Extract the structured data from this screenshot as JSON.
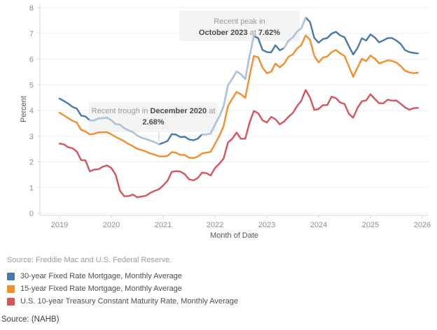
{
  "chart_data": {
    "type": "line",
    "xlabel": "Month of Date",
    "ylabel": "Percent",
    "x_start": "2019-01",
    "x_interval": "monthly",
    "xticks": [
      "2019",
      "2020",
      "2021",
      "2022",
      "2023",
      "2024",
      "2025",
      "2026"
    ],
    "yticks": [
      "0",
      "1",
      "2",
      "3",
      "4",
      "5",
      "6",
      "7",
      "8"
    ],
    "ylim": [
      0,
      8
    ],
    "grid": true,
    "legend_position": "bottom-left",
    "series": [
      {
        "name": "30-year Fixed Rate Mortgage, Monthly Average",
        "color": "#4878a8",
        "values": [
          4.46,
          4.37,
          4.27,
          4.14,
          4.07,
          3.8,
          3.77,
          3.62,
          3.61,
          3.69,
          3.7,
          3.72,
          3.62,
          3.47,
          3.45,
          3.31,
          3.23,
          3.16,
          3.02,
          2.94,
          2.89,
          2.83,
          2.77,
          2.68,
          2.74,
          2.81,
          3.08,
          3.06,
          2.96,
          2.98,
          2.87,
          2.84,
          2.9,
          3.07,
          3.07,
          3.1,
          3.45,
          3.76,
          4.17,
          4.98,
          5.23,
          5.52,
          5.41,
          5.22,
          6.11,
          6.9,
          6.81,
          6.36,
          6.27,
          6.26,
          6.54,
          6.34,
          6.43,
          6.71,
          6.84,
          7.07,
          7.2,
          7.62,
          7.44,
          6.82,
          6.64,
          6.78,
          6.82,
          6.99,
          7.06,
          6.92,
          6.85,
          6.5,
          6.18,
          6.43,
          6.81,
          6.72,
          6.96,
          6.84,
          6.65,
          6.73,
          6.82,
          6.82,
          6.72,
          6.59,
          6.35,
          6.27,
          6.24,
          6.22
        ]
      },
      {
        "name": "15-year Fixed Rate Mortgage, Monthly Average",
        "color": "#f28e2b",
        "values": [
          3.91,
          3.81,
          3.71,
          3.6,
          3.53,
          3.25,
          3.18,
          3.07,
          3.09,
          3.15,
          3.15,
          3.16,
          3.07,
          2.97,
          2.89,
          2.8,
          2.69,
          2.61,
          2.51,
          2.46,
          2.4,
          2.33,
          2.28,
          2.22,
          2.21,
          2.23,
          2.38,
          2.35,
          2.27,
          2.27,
          2.16,
          2.15,
          2.2,
          2.33,
          2.36,
          2.39,
          2.7,
          3.01,
          3.39,
          4.17,
          4.46,
          4.72,
          4.63,
          4.49,
          5.33,
          6.12,
          6.07,
          5.67,
          5.45,
          5.51,
          5.82,
          5.68,
          5.82,
          6.09,
          6.18,
          6.41,
          6.55,
          6.92,
          6.75,
          6.12,
          5.87,
          6.06,
          6.1,
          6.27,
          6.35,
          6.22,
          6.12,
          5.72,
          5.31,
          5.66,
          6.01,
          5.92,
          6.14,
          6.02,
          5.83,
          5.89,
          5.95,
          5.93,
          5.86,
          5.73,
          5.55,
          5.48,
          5.45,
          5.47
        ]
      },
      {
        "name": "U.S. 10-year Treasury Constant Maturity Rate, Monthly Average",
        "color": "#d4555c",
        "values": [
          2.71,
          2.68,
          2.57,
          2.53,
          2.4,
          2.07,
          2.06,
          1.63,
          1.7,
          1.71,
          1.81,
          1.86,
          1.76,
          1.5,
          0.87,
          0.66,
          0.67,
          0.73,
          0.62,
          0.65,
          0.68,
          0.79,
          0.87,
          0.93,
          1.08,
          1.26,
          1.61,
          1.64,
          1.62,
          1.52,
          1.32,
          1.28,
          1.37,
          1.58,
          1.56,
          1.47,
          1.76,
          1.93,
          2.13,
          2.75,
          2.9,
          3.14,
          2.9,
          2.9,
          3.52,
          3.98,
          3.89,
          3.62,
          3.53,
          3.75,
          3.66,
          3.46,
          3.57,
          3.75,
          3.9,
          4.17,
          4.38,
          4.8,
          4.5,
          4.02,
          4.06,
          4.21,
          4.21,
          4.54,
          4.48,
          4.31,
          4.25,
          3.87,
          3.72,
          4.1,
          4.36,
          4.39,
          4.63,
          4.45,
          4.28,
          4.28,
          4.42,
          4.38,
          4.39,
          4.26,
          4.12,
          4.03,
          4.09,
          4.1
        ]
      }
    ],
    "highlight": {
      "color": "#b1c5da",
      "segments": [
        [
          7,
          23
        ],
        [
          33,
          45
        ],
        [
          52,
          57
        ]
      ]
    },
    "annotations": [
      {
        "id": "peak",
        "line1": "Recent peak in",
        "date": "October 2023",
        "mid": " at ",
        "value": "7.62%",
        "target": {
          "month_index": 57,
          "rate": 7.62
        }
      },
      {
        "id": "trough",
        "pre": "Recent trough in ",
        "date": "December 2020",
        "mid": " at",
        "value": "2.68%",
        "target": {
          "month_index": 23,
          "rate": 2.68
        }
      }
    ]
  },
  "axis": {
    "ylabel": "Percent",
    "xlabel": "Month of Date"
  },
  "sources": {
    "data_source": "Source: Freddie Mac and U.S. Federal Reserve.",
    "footer": "Source: (NAHB)"
  },
  "colors": {
    "grid": "#ededed",
    "axis": "#d7d7d7",
    "tick_label": "#8e8e8e",
    "leader_line": "#cccccc"
  }
}
